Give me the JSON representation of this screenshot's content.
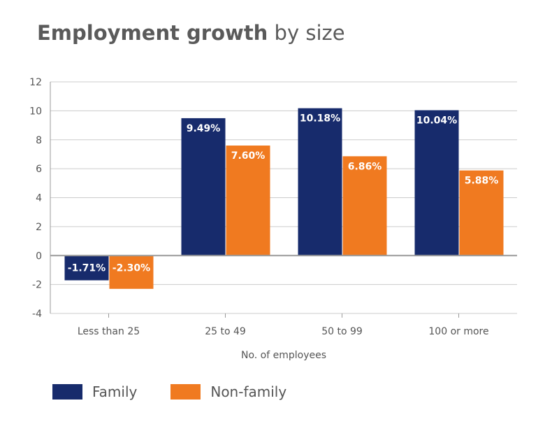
{
  "title": {
    "bold": "Employment growth",
    "light": "by size"
  },
  "colors": {
    "family": "#172b6c",
    "nonfamily": "#f07a20",
    "grid": "#cccccc",
    "axis": "#999999"
  },
  "chart_data": {
    "type": "bar",
    "title": "Employment growth by size",
    "xlabel": "No. of employees",
    "ylabel": "",
    "ylim": [
      -4,
      12
    ],
    "yticks": [
      "12",
      "10",
      "8",
      "6",
      "4",
      "2",
      "0",
      "-2",
      "-4"
    ],
    "categories": [
      "Less than 25",
      "25 to 49",
      "50 to 99",
      "100 or more"
    ],
    "series": [
      {
        "name": "Family",
        "values": [
          -1.71,
          9.49,
          10.18,
          10.04
        ],
        "labels": [
          "-1.71%",
          "9.49%",
          "10.18%",
          "10.04%"
        ]
      },
      {
        "name": "Non-family",
        "values": [
          -2.3,
          7.6,
          6.86,
          5.88
        ],
        "labels": [
          "-2.30%",
          "7.60%",
          "6.86%",
          "5.88%"
        ]
      }
    ],
    "grid": true,
    "legend": "bottom-left"
  }
}
